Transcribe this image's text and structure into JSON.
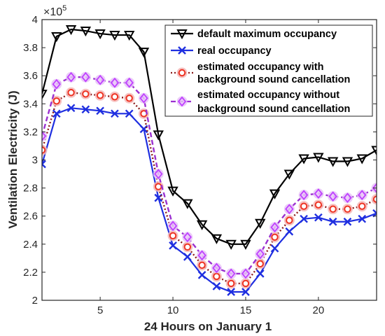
{
  "chart_data": {
    "type": "line",
    "xlabel": "24 Hours on January 1",
    "ylabel": "Ventilation Electricity (J)",
    "y_multiplier": "×10",
    "y_multiplier_exp": "5",
    "xlim": [
      1,
      24
    ],
    "ylim": [
      2.0,
      4.0
    ],
    "xticks": [
      5,
      10,
      15,
      20
    ],
    "yticks": [
      2,
      2.2,
      2.4,
      2.6,
      2.8,
      3,
      3.2,
      3.4,
      3.6,
      3.8,
      4
    ],
    "ytick_labels": [
      "2",
      "2.2",
      "2.4",
      "2.6",
      "2.8",
      "3",
      "3.2",
      "3.4",
      "3.6",
      "3.8",
      "4"
    ],
    "grid": false,
    "legend_position": "top-right",
    "x": [
      1,
      2,
      3,
      4,
      5,
      6,
      7,
      8,
      9,
      10,
      11,
      12,
      13,
      14,
      15,
      16,
      17,
      18,
      19,
      20,
      21,
      22,
      23,
      24
    ],
    "series": [
      {
        "name": "default maximum occupancy",
        "legend_lines": [
          "default maximum occupancy"
        ],
        "color": "#000000",
        "line_style": "solid",
        "marker": "triangle-down",
        "values": [
          3.47,
          3.88,
          3.93,
          3.92,
          3.9,
          3.89,
          3.89,
          3.77,
          3.18,
          2.78,
          2.69,
          2.54,
          2.44,
          2.4,
          2.4,
          2.55,
          2.76,
          2.9,
          3.01,
          3.02,
          2.99,
          2.99,
          3.01,
          3.07
        ]
      },
      {
        "name": "real occupancy",
        "legend_lines": [
          "real occupancy"
        ],
        "color": "#1f2fe0",
        "line_style": "solid",
        "marker": "x",
        "values": [
          2.97,
          3.33,
          3.37,
          3.36,
          3.35,
          3.33,
          3.33,
          3.22,
          2.73,
          2.39,
          2.31,
          2.18,
          2.1,
          2.06,
          2.06,
          2.19,
          2.37,
          2.49,
          2.58,
          2.59,
          2.56,
          2.56,
          2.58,
          2.62
        ]
      },
      {
        "name": "estimated occupancy with background sound cancellation",
        "legend_lines": [
          "estimated occupancy with",
          "background sound cancellation"
        ],
        "color": "#8b1a1a",
        "line_style": "dotted",
        "marker": "circle",
        "marker_color": "#ee3322",
        "values": [
          3.07,
          3.42,
          3.48,
          3.47,
          3.46,
          3.45,
          3.44,
          3.33,
          2.81,
          2.46,
          2.38,
          2.25,
          2.17,
          2.12,
          2.12,
          2.26,
          2.45,
          2.57,
          2.67,
          2.68,
          2.65,
          2.65,
          2.67,
          2.72
        ]
      },
      {
        "name": "estimated occupancy without background sound cancellation",
        "legend_lines": [
          "estimated occupancy without",
          "background sound cancellation"
        ],
        "color": "#9b30d0",
        "line_style": "dashed",
        "marker": "diamond",
        "marker_color": "#bf40ff",
        "values": [
          3.17,
          3.54,
          3.59,
          3.59,
          3.57,
          3.55,
          3.55,
          3.44,
          2.9,
          2.53,
          2.45,
          2.32,
          2.23,
          2.19,
          2.19,
          2.33,
          2.52,
          2.65,
          2.75,
          2.76,
          2.74,
          2.73,
          2.75,
          2.8
        ]
      }
    ]
  }
}
